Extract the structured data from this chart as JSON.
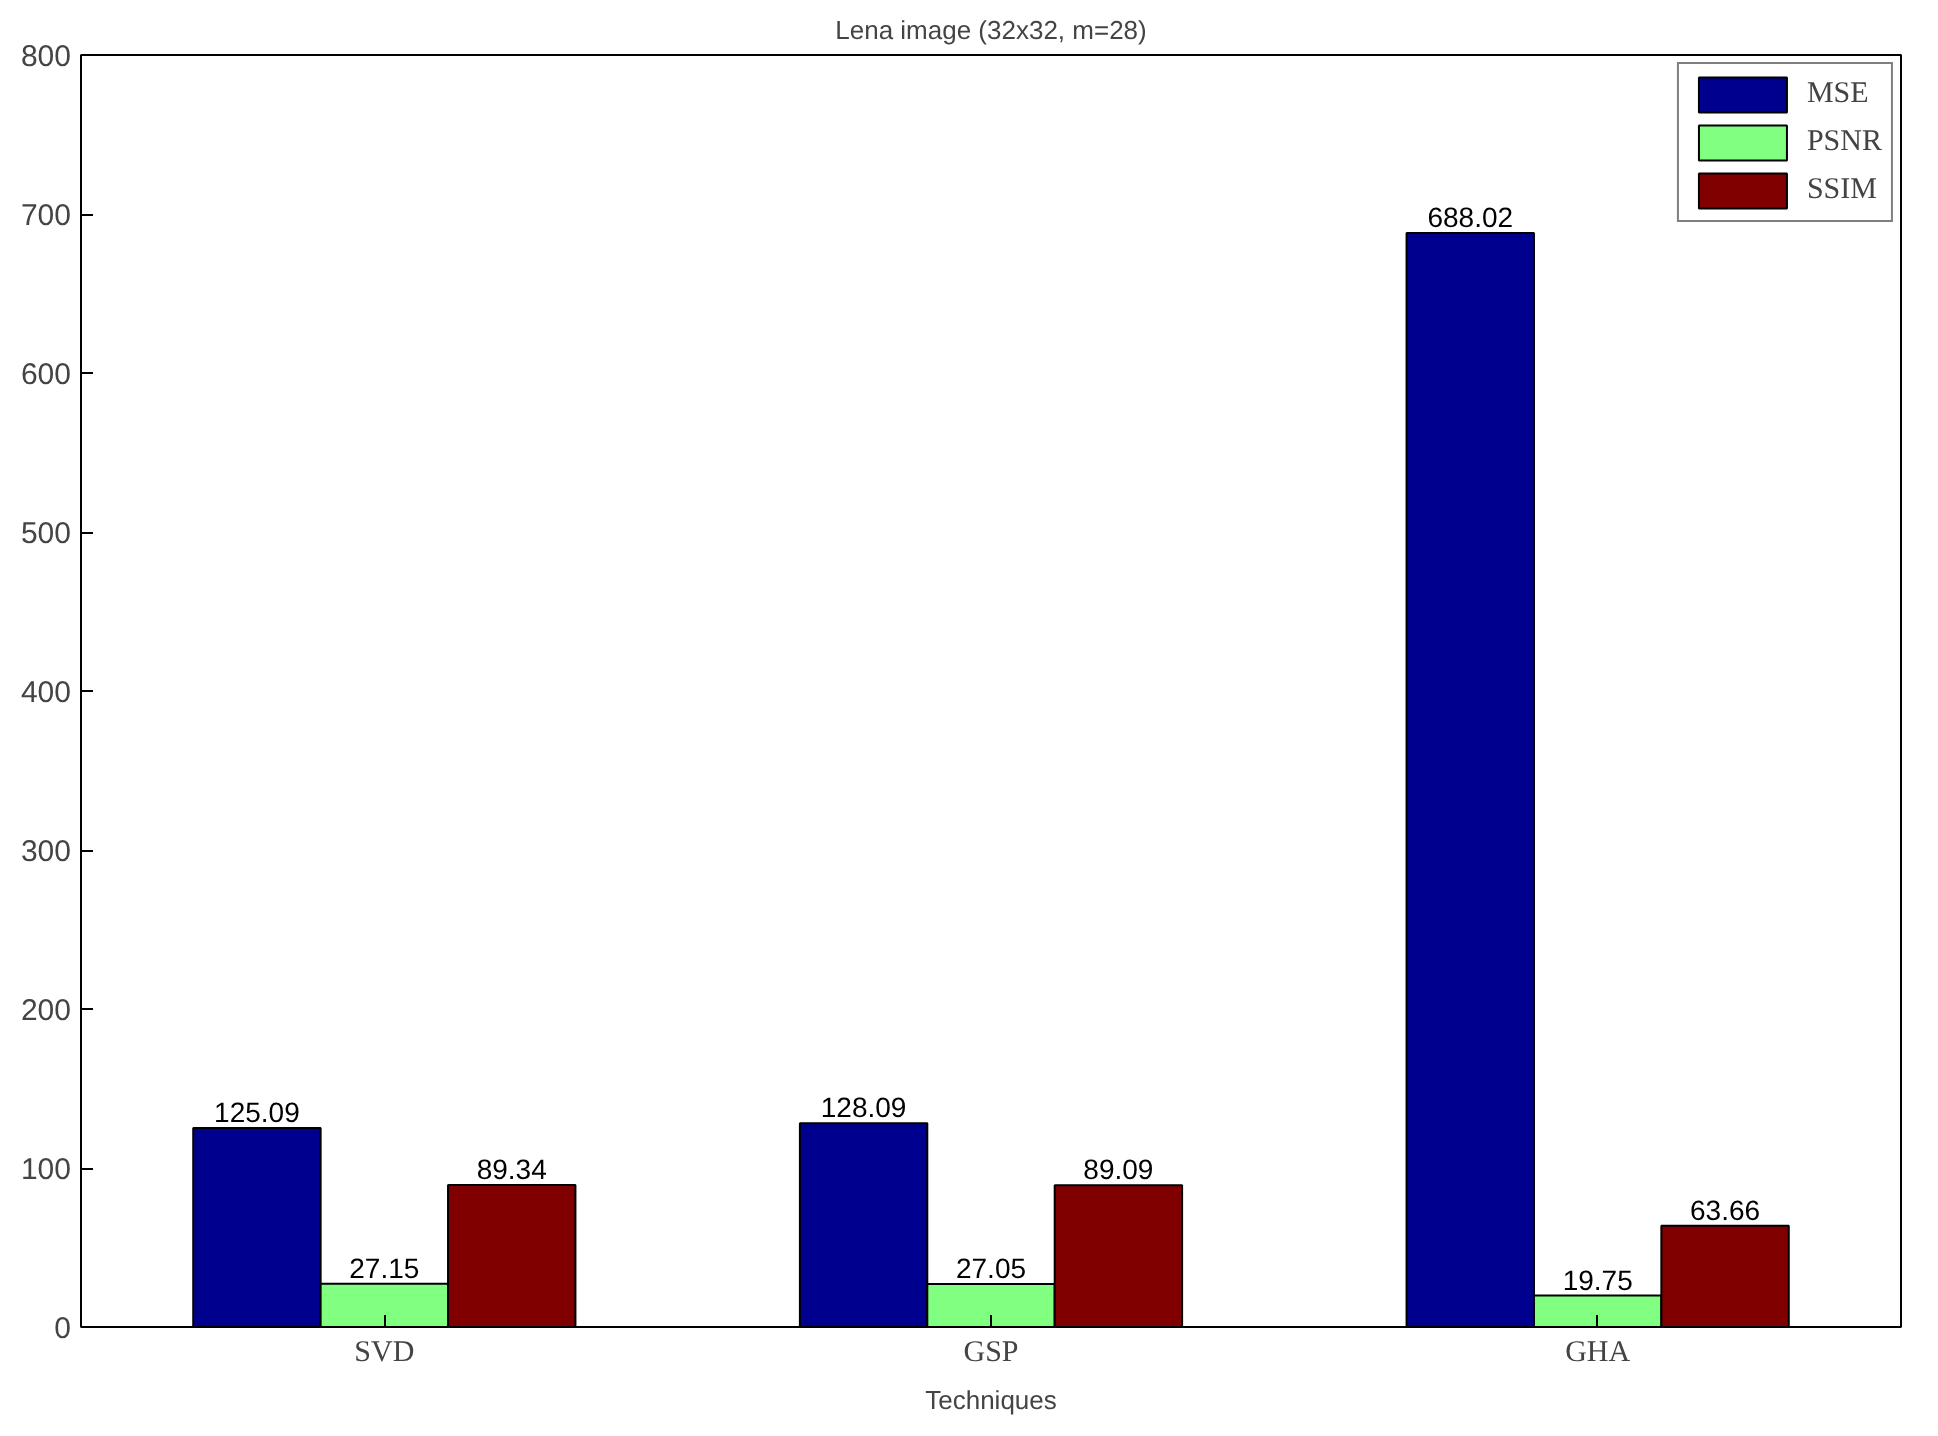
{
  "chart_data": {
    "type": "bar",
    "title": "Lena image (32x32, m=28)",
    "xlabel": "Techniques",
    "categories": [
      "SVD",
      "GSP",
      "GHA"
    ],
    "series": [
      {
        "name": "MSE",
        "color": "#00008f",
        "values": [
          125.09,
          128.09,
          688.02
        ]
      },
      {
        "name": "PSNR",
        "color": "#80ff80",
        "values": [
          27.15,
          27.05,
          19.75
        ]
      },
      {
        "name": "SSIM",
        "color": "#800000",
        "values": [
          89.34,
          89.09,
          63.66
        ]
      }
    ],
    "ylim": [
      0,
      800
    ],
    "yticks": [
      0,
      100,
      200,
      300,
      400,
      500,
      600,
      700,
      800
    ],
    "grid": false,
    "legend": "top right",
    "data_labels": true
  }
}
